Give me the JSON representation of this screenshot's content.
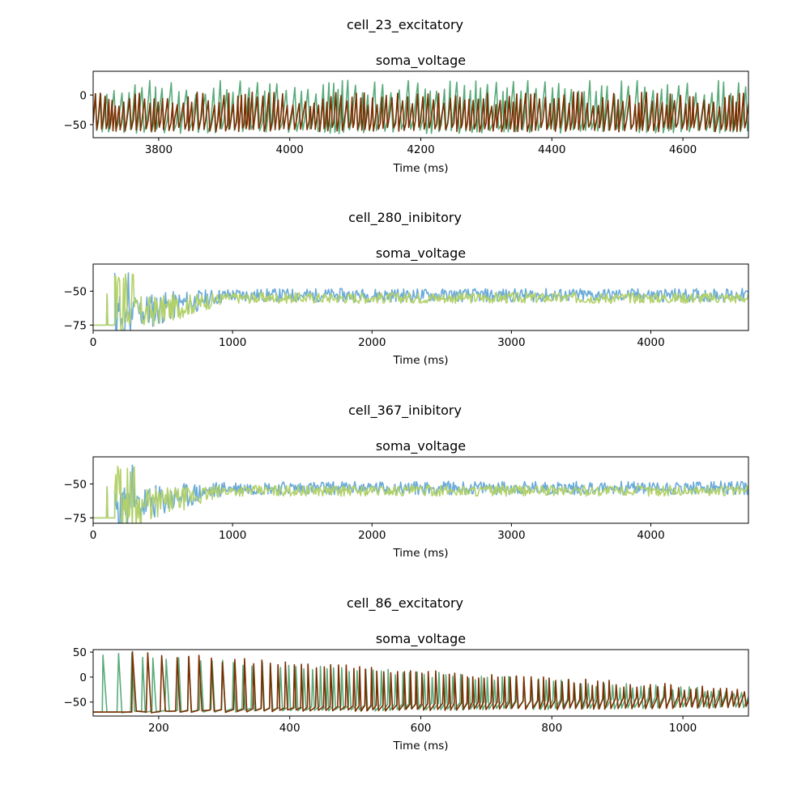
{
  "chart_data": [
    {
      "type": "line",
      "suptitle": "cell_23_excitatory",
      "title": "soma_voltage",
      "xlabel": "Time (ms)",
      "ylabel": "",
      "xlim": [
        3700,
        4700
      ],
      "ylim": [
        -72,
        40
      ],
      "xticks": [
        3800,
        4000,
        4200,
        4400,
        4600
      ],
      "yticks": [
        0,
        -50
      ],
      "colors": [
        "#5aab7a",
        "#7a2e00"
      ],
      "series": [
        {
          "pattern": "spiking",
          "rest": -45,
          "peak": 25,
          "trough": -65,
          "isi": 10,
          "start": 3700,
          "end": 4700,
          "amp_decay": 0,
          "seed": 3
        },
        {
          "pattern": "spiking",
          "rest": -45,
          "peak": 5,
          "trough": -62,
          "isi": 7,
          "start": 3700,
          "end": 4700,
          "amp_decay": 0,
          "seed": 7
        }
      ]
    },
    {
      "type": "line",
      "suptitle": "cell_280_inibitory",
      "title": "soma_voltage",
      "xlabel": "Time (ms)",
      "ylabel": "",
      "xlim": [
        0,
        4700
      ],
      "ylim": [
        -79,
        -30
      ],
      "xticks": [
        0,
        1000,
        2000,
        3000,
        4000
      ],
      "yticks": [
        -50,
        -75
      ],
      "colors": [
        "#6aaad8",
        "#b3d16b"
      ],
      "series": [
        {
          "pattern": "noisy",
          "rest": -75,
          "onset": 155,
          "settle": -53,
          "noise": 5,
          "seed": 11
        },
        {
          "pattern": "noisy",
          "rest": -75,
          "onset": 155,
          "settle": -55,
          "noise": 4,
          "seed": 17
        }
      ]
    },
    {
      "type": "line",
      "suptitle": "cell_367_inibitory",
      "title": "soma_voltage",
      "xlabel": "Time (ms)",
      "ylabel": "",
      "xlim": [
        0,
        4700
      ],
      "ylim": [
        -79,
        -30
      ],
      "xticks": [
        0,
        1000,
        2000,
        3000,
        4000
      ],
      "yticks": [
        -50,
        -75
      ],
      "colors": [
        "#6aaad8",
        "#b3d16b"
      ],
      "series": [
        {
          "pattern": "noisy",
          "rest": -75,
          "onset": 155,
          "settle": -53,
          "noise": 5,
          "seed": 23
        },
        {
          "pattern": "noisy",
          "rest": -75,
          "onset": 155,
          "settle": -55,
          "noise": 4,
          "seed": 29
        }
      ]
    },
    {
      "type": "line",
      "suptitle": "cell_86_excitatory",
      "title": "soma_voltage",
      "xlabel": "Time (ms)",
      "ylabel": "",
      "xlim": [
        100,
        1100
      ],
      "ylim": [
        -78,
        55
      ],
      "xticks": [
        200,
        400,
        600,
        800,
        1000
      ],
      "yticks": [
        50,
        0,
        -50
      ],
      "colors": [
        "#5aab7a",
        "#7a2e00"
      ],
      "series": [
        {
          "pattern": "ramp",
          "rest": -70,
          "first": 115,
          "isi0": 20,
          "isi1": 11,
          "peak": 48,
          "end_peak": -30,
          "seed": 41
        },
        {
          "pattern": "ramp",
          "rest": -70,
          "first": 160,
          "isi0": 22,
          "isi1": 10,
          "peak": 48,
          "end_peak": -28,
          "seed": 43
        }
      ]
    }
  ]
}
